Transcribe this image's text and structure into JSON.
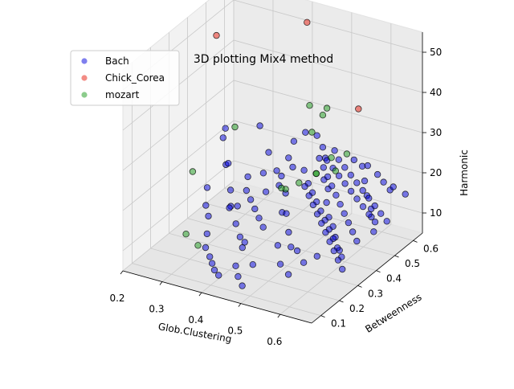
{
  "chart_data": {
    "type": "scatter",
    "projection": "3d",
    "title": "3D plotting Mix4 method",
    "xlabel": "Glob.Clustering",
    "ylabel": "Betweenness",
    "zlabel": "Harmonic",
    "xlim": [
      0.2,
      0.68
    ],
    "ylim": [
      0.05,
      0.65
    ],
    "zlim": [
      5,
      55
    ],
    "xticks": [
      "0.2",
      "0.3",
      "0.4",
      "0.5",
      "0.6"
    ],
    "yticks": [
      "0.1",
      "0.2",
      "0.3",
      "0.4",
      "0.5",
      "0.6"
    ],
    "zticks": [
      "10",
      "20",
      "30",
      "40",
      "50"
    ],
    "grid": true,
    "legend_position": "upper-left",
    "series": [
      {
        "name": "Bach",
        "color": "#0000dd",
        "points": [
          [
            0.22,
            0.55,
            20
          ],
          [
            0.24,
            0.52,
            24
          ],
          [
            0.26,
            0.48,
            17
          ],
          [
            0.28,
            0.45,
            19
          ],
          [
            0.29,
            0.6,
            23
          ],
          [
            0.3,
            0.42,
            14
          ],
          [
            0.31,
            0.4,
            11
          ],
          [
            0.33,
            0.35,
            13
          ],
          [
            0.35,
            0.52,
            21
          ],
          [
            0.36,
            0.33,
            15
          ],
          [
            0.37,
            0.3,
            12
          ],
          [
            0.38,
            0.5,
            18
          ],
          [
            0.39,
            0.28,
            10
          ],
          [
            0.4,
            0.47,
            16
          ],
          [
            0.41,
            0.25,
            9
          ],
          [
            0.42,
            0.44,
            20
          ],
          [
            0.43,
            0.22,
            12
          ],
          [
            0.44,
            0.42,
            17
          ],
          [
            0.45,
            0.38,
            14
          ],
          [
            0.46,
            0.2,
            8
          ],
          [
            0.47,
            0.36,
            15
          ],
          [
            0.48,
            0.55,
            22
          ],
          [
            0.49,
            0.33,
            12
          ],
          [
            0.5,
            0.5,
            19
          ],
          [
            0.51,
            0.3,
            10
          ],
          [
            0.52,
            0.48,
            18
          ],
          [
            0.53,
            0.45,
            16
          ],
          [
            0.54,
            0.27,
            11
          ],
          [
            0.55,
            0.42,
            14
          ],
          [
            0.56,
            0.58,
            21
          ],
          [
            0.57,
            0.4,
            13
          ],
          [
            0.58,
            0.55,
            19
          ],
          [
            0.59,
            0.37,
            12
          ],
          [
            0.6,
            0.52,
            17
          ],
          [
            0.61,
            0.35,
            10
          ],
          [
            0.62,
            0.5,
            15
          ],
          [
            0.63,
            0.48,
            14
          ],
          [
            0.64,
            0.56,
            18
          ],
          [
            0.65,
            0.45,
            12
          ],
          [
            0.66,
            0.6,
            16
          ],
          [
            0.45,
            0.6,
            22
          ],
          [
            0.47,
            0.58,
            20
          ],
          [
            0.49,
            0.57,
            19
          ],
          [
            0.51,
            0.56,
            18
          ],
          [
            0.53,
            0.55,
            17
          ],
          [
            0.55,
            0.54,
            16
          ],
          [
            0.57,
            0.53,
            15
          ],
          [
            0.59,
            0.52,
            14
          ],
          [
            0.61,
            0.51,
            13
          ],
          [
            0.63,
            0.5,
            12
          ],
          [
            0.44,
            0.52,
            19
          ],
          [
            0.46,
            0.5,
            17
          ],
          [
            0.48,
            0.48,
            16
          ],
          [
            0.5,
            0.46,
            15
          ],
          [
            0.52,
            0.44,
            14
          ],
          [
            0.54,
            0.42,
            13
          ],
          [
            0.56,
            0.4,
            12
          ],
          [
            0.58,
            0.38,
            11
          ],
          [
            0.6,
            0.36,
            10
          ],
          [
            0.62,
            0.34,
            9
          ],
          [
            0.46,
            0.56,
            21
          ],
          [
            0.48,
            0.54,
            20
          ],
          [
            0.5,
            0.52,
            19
          ],
          [
            0.52,
            0.5,
            18
          ],
          [
            0.54,
            0.48,
            17
          ],
          [
            0.56,
            0.46,
            16
          ],
          [
            0.58,
            0.44,
            15
          ],
          [
            0.6,
            0.42,
            14
          ],
          [
            0.62,
            0.4,
            13
          ],
          [
            0.64,
            0.38,
            12
          ],
          [
            0.4,
            0.55,
            24
          ],
          [
            0.42,
            0.57,
            26
          ],
          [
            0.44,
            0.59,
            25
          ],
          [
            0.43,
            0.48,
            21
          ],
          [
            0.41,
            0.5,
            22
          ],
          [
            0.52,
            0.62,
            20
          ],
          [
            0.55,
            0.63,
            19
          ],
          [
            0.58,
            0.62,
            18
          ],
          [
            0.6,
            0.61,
            17
          ],
          [
            0.62,
            0.62,
            16
          ],
          [
            0.3,
            0.3,
            12
          ],
          [
            0.32,
            0.25,
            10
          ],
          [
            0.34,
            0.2,
            9
          ],
          [
            0.36,
            0.18,
            8
          ],
          [
            0.38,
            0.15,
            8
          ],
          [
            0.4,
            0.12,
            8
          ],
          [
            0.42,
            0.1,
            8
          ],
          [
            0.44,
            0.15,
            9
          ],
          [
            0.46,
            0.12,
            8
          ],
          [
            0.48,
            0.1,
            7
          ],
          [
            0.5,
            0.25,
            12
          ],
          [
            0.53,
            0.2,
            10
          ],
          [
            0.56,
            0.18,
            9
          ],
          [
            0.58,
            0.22,
            11
          ],
          [
            0.6,
            0.25,
            12
          ],
          [
            0.35,
            0.4,
            16
          ],
          [
            0.37,
            0.38,
            15
          ],
          [
            0.39,
            0.36,
            14
          ],
          [
            0.41,
            0.34,
            13
          ],
          [
            0.43,
            0.32,
            12
          ],
          [
            0.47,
            0.46,
            18
          ],
          [
            0.49,
            0.44,
            17
          ],
          [
            0.51,
            0.42,
            16
          ],
          [
            0.53,
            0.4,
            15
          ],
          [
            0.55,
            0.38,
            14
          ],
          [
            0.57,
            0.36,
            13
          ],
          [
            0.59,
            0.34,
            12
          ],
          [
            0.61,
            0.32,
            11
          ],
          [
            0.63,
            0.3,
            10
          ],
          [
            0.65,
            0.28,
            9
          ],
          [
            0.5,
            0.58,
            21
          ],
          [
            0.52,
            0.57,
            20
          ],
          [
            0.54,
            0.56,
            19
          ],
          [
            0.56,
            0.55,
            18
          ],
          [
            0.58,
            0.54,
            17
          ],
          [
            0.6,
            0.53,
            16
          ],
          [
            0.62,
            0.52,
            15
          ],
          [
            0.64,
            0.51,
            14
          ],
          [
            0.66,
            0.5,
            13
          ],
          [
            0.48,
            0.6,
            22
          ],
          [
            0.25,
            0.4,
            14
          ],
          [
            0.27,
            0.35,
            12
          ],
          [
            0.33,
            0.45,
            17
          ],
          [
            0.36,
            0.47,
            18
          ],
          [
            0.39,
            0.42,
            16
          ]
        ]
      },
      {
        "name": "Chick_Corea",
        "color": "#e8190b",
        "points": [
          [
            0.25,
            0.45,
            50
          ],
          [
            0.41,
            0.6,
            52
          ],
          [
            0.55,
            0.58,
            35
          ]
        ]
      },
      {
        "name": "mozart",
        "color": "#1a9a1a",
        "points": [
          [
            0.26,
            0.3,
            22
          ],
          [
            0.33,
            0.38,
            32
          ],
          [
            0.44,
            0.55,
            34
          ],
          [
            0.46,
            0.52,
            29
          ],
          [
            0.47,
            0.58,
            33
          ],
          [
            0.45,
            0.6,
            30
          ],
          [
            0.48,
            0.5,
            20
          ],
          [
            0.5,
            0.54,
            23
          ],
          [
            0.52,
            0.52,
            21
          ],
          [
            0.44,
            0.42,
            18
          ],
          [
            0.46,
            0.45,
            19
          ],
          [
            0.49,
            0.48,
            21
          ],
          [
            0.53,
            0.56,
            24
          ],
          [
            0.29,
            0.2,
            11
          ],
          [
            0.33,
            0.18,
            10
          ],
          [
            0.42,
            0.44,
            17
          ]
        ]
      }
    ]
  }
}
